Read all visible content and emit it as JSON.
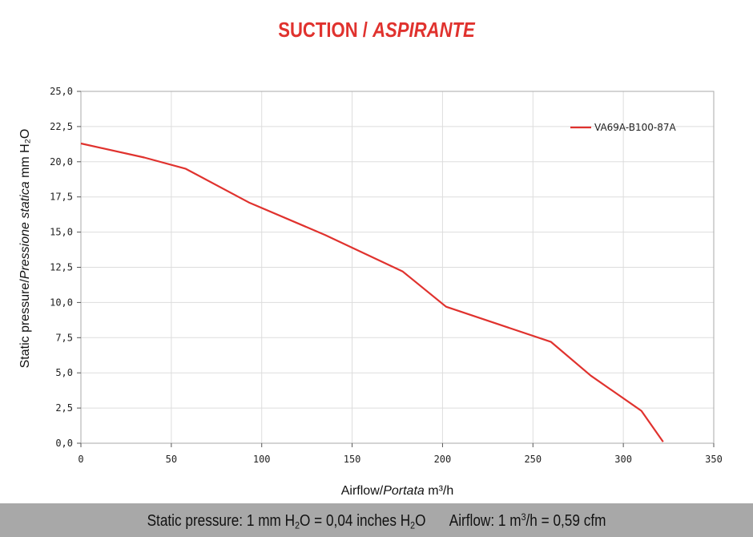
{
  "header": {
    "title_main": "SUCTION / ",
    "title_italic": "ASPIRANTE"
  },
  "chart_data": {
    "type": "line",
    "title": "SUCTION / ASPIRANTE",
    "xlabel": {
      "main": "Airflow",
      "italic": "Portata",
      "unit": "m³/h"
    },
    "ylabel": {
      "main": "Static pressure",
      "italic": "Pressione statica",
      "unit": "mm H₂O"
    },
    "xlim": [
      0,
      350
    ],
    "ylim": [
      0,
      25
    ],
    "x_ticks": [
      0,
      50,
      100,
      150,
      200,
      250,
      300,
      350
    ],
    "x_tick_labels": [
      "0",
      "50",
      "100",
      "150",
      "200",
      "250",
      "300",
      "350"
    ],
    "y_ticks": [
      0,
      2.5,
      5,
      7.5,
      10,
      12.5,
      15,
      17.5,
      20,
      22.5,
      25
    ],
    "y_tick_labels": [
      "0,0",
      "2,5",
      "5,0",
      "7,5",
      "10,0",
      "12,5",
      "15,0",
      "17,5",
      "20,0",
      "22,5",
      "25,0"
    ],
    "grid": true,
    "legend_position": "top-right",
    "series": [
      {
        "name": "VA69A-B100-87A",
        "color": "#e0322e",
        "x": [
          0,
          35,
          58,
          93,
          135,
          178,
          202,
          260,
          282,
          310,
          322
        ],
        "y": [
          21.3,
          20.3,
          19.5,
          17.1,
          14.8,
          12.2,
          9.7,
          7.2,
          4.8,
          2.3,
          0.1
        ]
      }
    ]
  },
  "footer": {
    "pressure_prefix": "Static pressure: 1 mm H",
    "pressure_sub1": "2",
    "pressure_mid": "O = 0,04 inches H",
    "pressure_sub2": "2",
    "pressure_suffix": "O",
    "airflow_prefix": "Airflow: 1 m",
    "airflow_sup": "3",
    "airflow_suffix": "/h = 0,59 cfm"
  }
}
